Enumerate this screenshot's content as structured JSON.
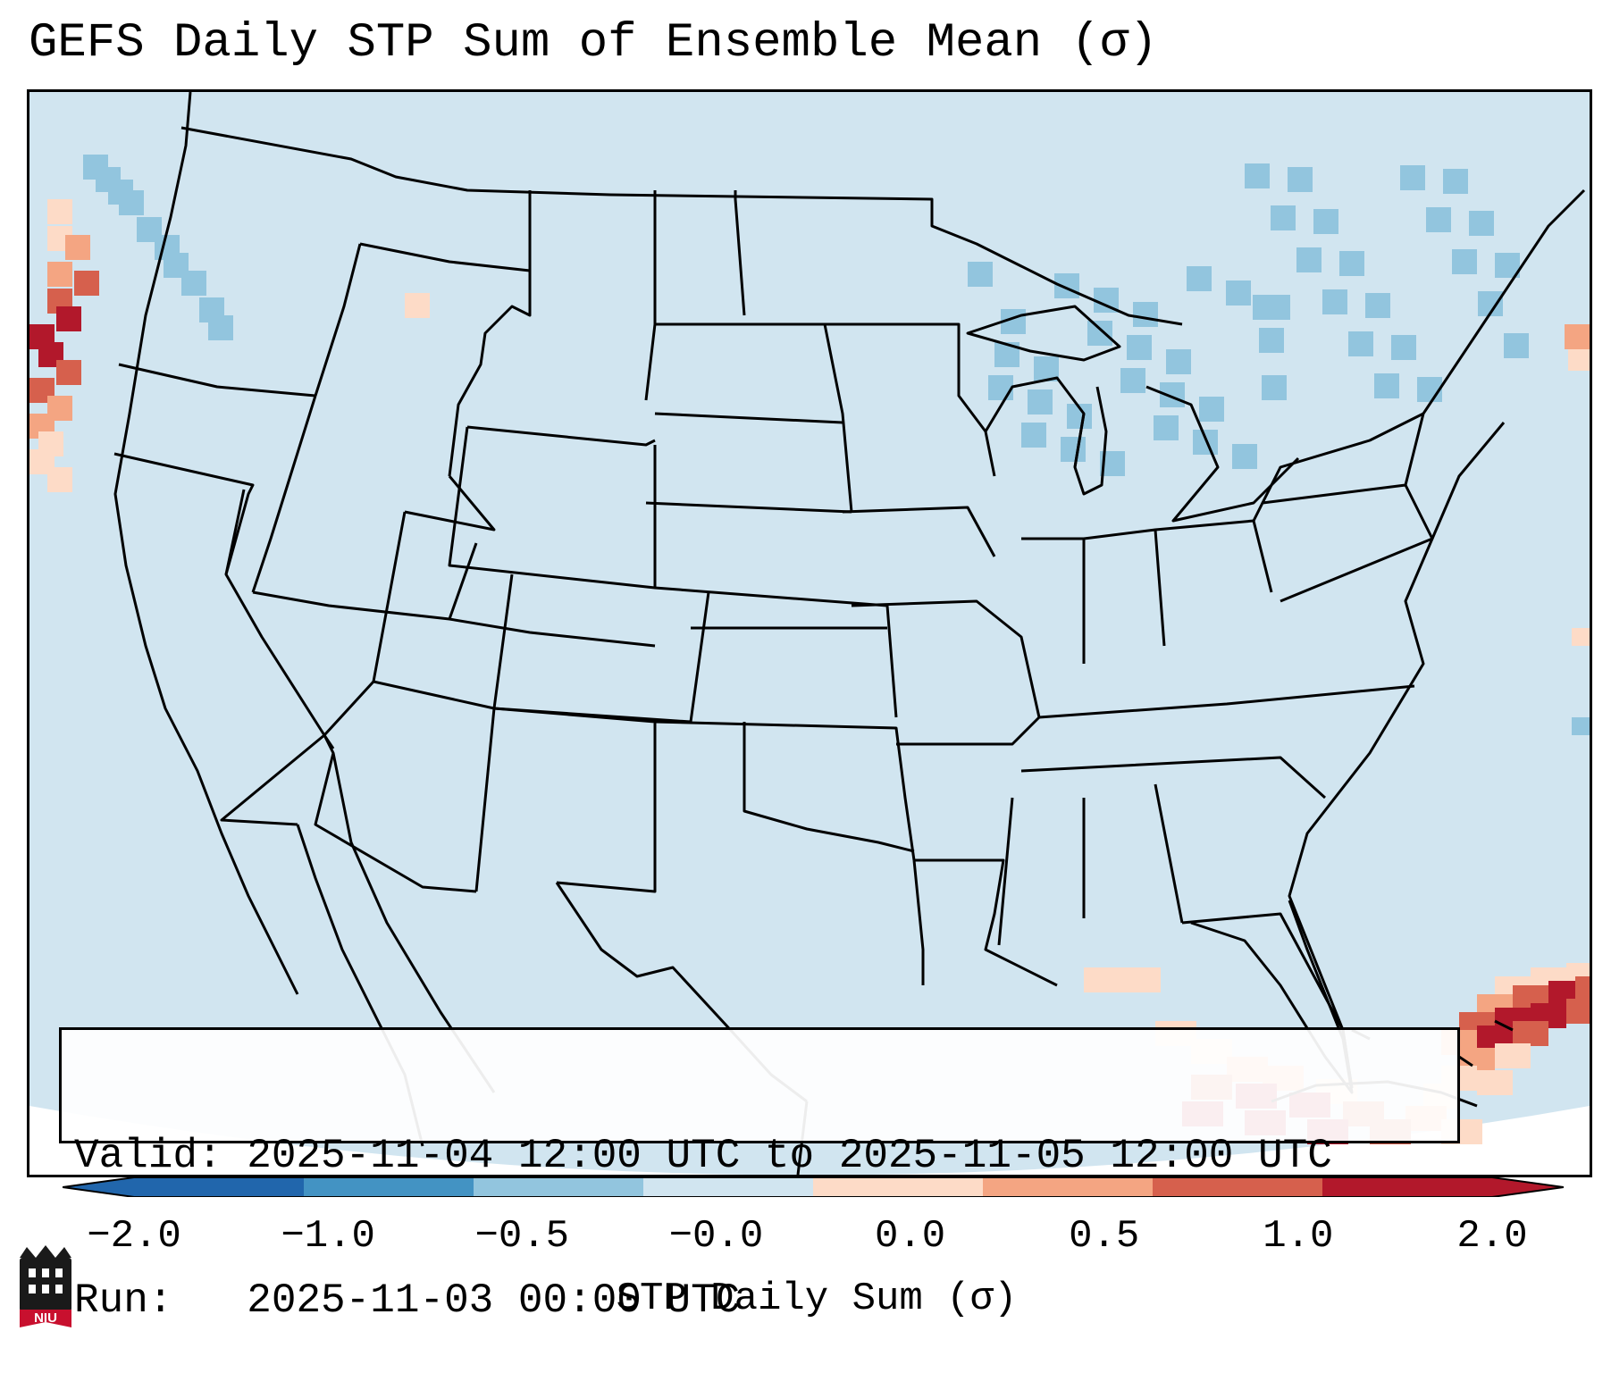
{
  "title": "GEFS Daily STP Sum of Ensemble Mean (σ)",
  "info": {
    "valid_line": "Valid: 2025-11-04 12:00 UTC to 2025-11-05 12:00 UTC",
    "run_line": "Run:   2025-11-03 00:00 UTC"
  },
  "colorbar": {
    "label": "STP Daily Sum (σ)",
    "ticks": [
      "−2.0",
      "−1.0",
      "−0.5",
      "−0.0",
      "0.0",
      "0.5",
      "1.0",
      "2.0"
    ],
    "colors": [
      "#2166ac",
      "#4393c3",
      "#92c5de",
      "#d1e5f0",
      "#fddbc7",
      "#f4a582",
      "#d6604d",
      "#b2182b"
    ],
    "under_color": "#2166ac",
    "over_color": "#b2182b"
  },
  "map": {
    "background_field_color": "#d1e5f0",
    "region": "Continental United States",
    "anomalies": [
      {
        "region": "Pacific off Oregon/California coast",
        "sign": "positive",
        "max_sigma": 2.0
      },
      {
        "region": "Bahamas / western Atlantic",
        "sign": "positive",
        "max_sigma": 2.0
      },
      {
        "region": "Cuba / northern Caribbean",
        "sign": "positive",
        "max_sigma": 2.0
      },
      {
        "region": "Great Lakes / Northeast",
        "sign": "negative",
        "max_sigma": -0.5
      },
      {
        "region": "Pacific Northwest",
        "sign": "negative",
        "max_sigma": -0.5
      }
    ]
  },
  "logo": {
    "text": "NIU",
    "color": "#c8102e"
  }
}
